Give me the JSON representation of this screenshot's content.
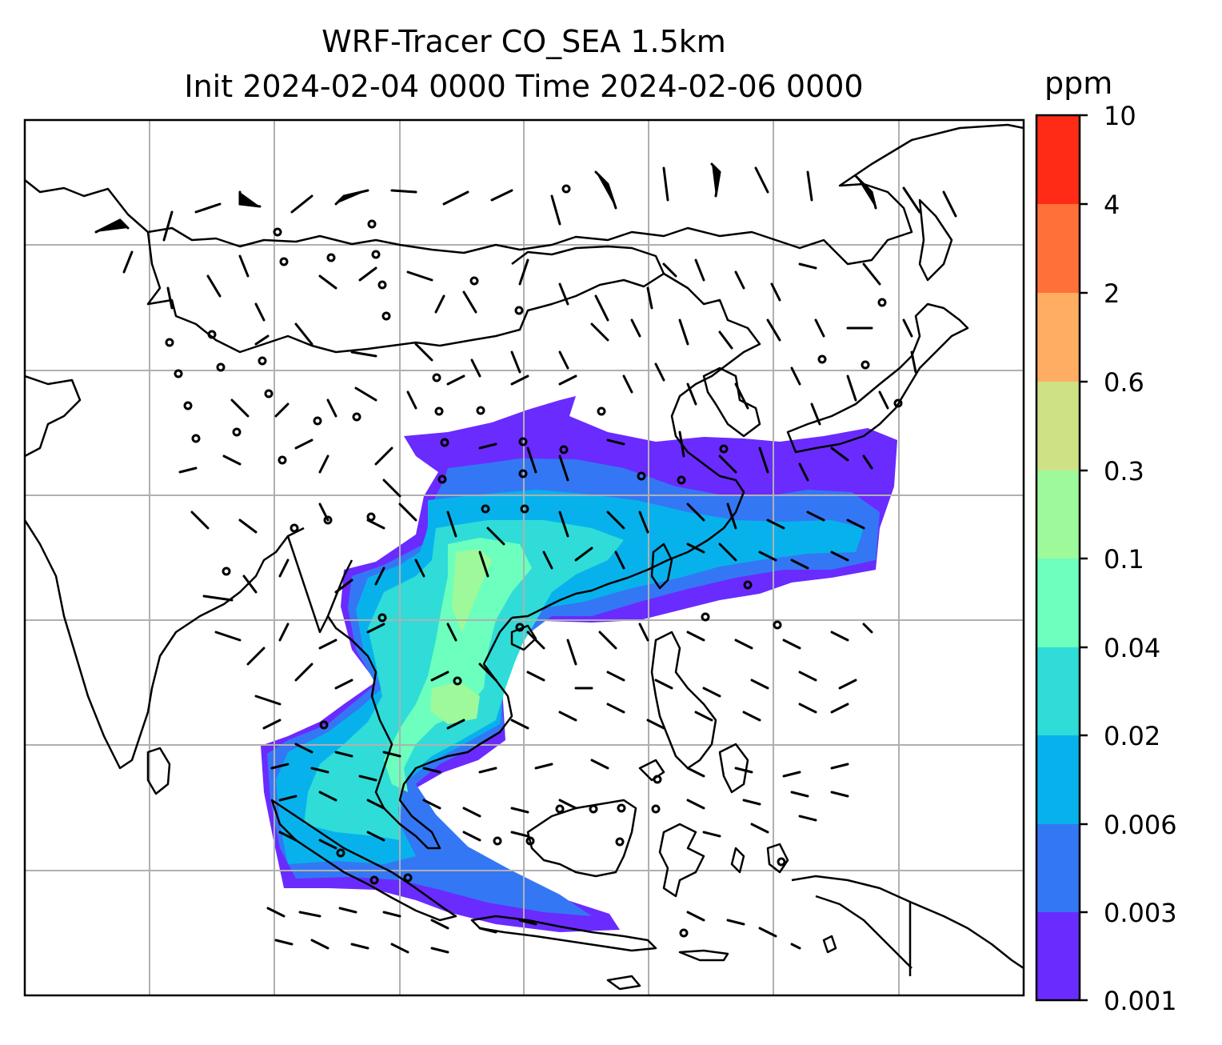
{
  "title": {
    "line1": "WRF-Tracer CO_SEA 1.5km",
    "line2": "Init 2024-02-04 0000 Time 2024-02-06 0000"
  },
  "colorbar": {
    "unit": "ppm",
    "ticks": [
      "0.001",
      "0.003",
      "0.006",
      "0.02",
      "0.04",
      "0.1",
      "0.3",
      "0.6",
      "2",
      "4",
      "10"
    ],
    "colors": [
      "#6a2bff",
      "#3477f4",
      "#07b2ec",
      "#2fdcd8",
      "#6dffbd",
      "#9ef99a",
      "#cee285",
      "#ffad63",
      "#ff7138",
      "#ff2b17"
    ]
  },
  "map": {
    "region": "Southeast and East Asia",
    "overlays": [
      "filled-contours",
      "wind-barbs",
      "coastlines",
      "gridlines"
    ],
    "gridlines": true
  }
}
